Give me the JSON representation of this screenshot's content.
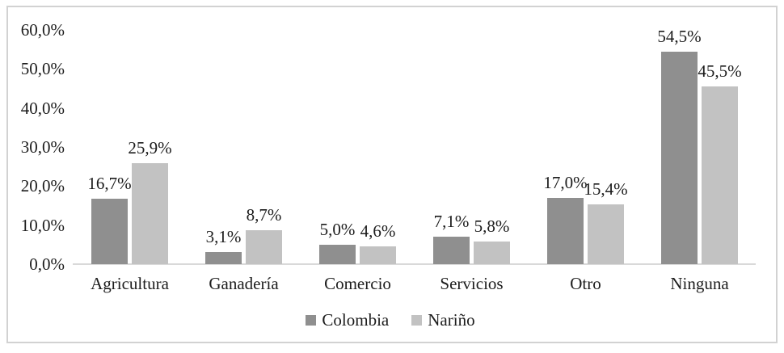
{
  "chart_data": {
    "type": "bar",
    "title": "",
    "xlabel": "",
    "ylabel": "",
    "categories": [
      "Agricultura",
      "Ganadería",
      "Comercio",
      "Servicios",
      "Otro",
      "Ninguna"
    ],
    "series": [
      {
        "name": "Colombia",
        "color": "#8f8f8f",
        "values": [
          16.7,
          3.1,
          5.0,
          7.1,
          17.0,
          54.5
        ],
        "value_labels": [
          "16,7%",
          "3,1%",
          "5,0%",
          "7,1%",
          "17,0%",
          "54,5%"
        ]
      },
      {
        "name": "Nariño",
        "color": "#c2c2c2",
        "values": [
          25.9,
          8.7,
          4.6,
          5.8,
          15.4,
          45.5
        ],
        "value_labels": [
          "25,9%",
          "8,7%",
          "4,6%",
          "5,8%",
          "15,4%",
          "45,5%"
        ]
      }
    ],
    "y_ticks": [
      {
        "value": 0,
        "label": "0,0%"
      },
      {
        "value": 10,
        "label": "10,0%"
      },
      {
        "value": 20,
        "label": "20,0%"
      },
      {
        "value": 30,
        "label": "30,0%"
      },
      {
        "value": 40,
        "label": "40,0%"
      },
      {
        "value": 50,
        "label": "50,0%"
      },
      {
        "value": 60,
        "label": "60,0%"
      }
    ],
    "ylim": [
      0,
      60
    ],
    "grid": false,
    "legend_position": "bottom",
    "colors": {
      "axis_line": "#d9d9d9",
      "frame_border": "#d2d2d2",
      "text": "#1c1c1c",
      "background": "#ffffff"
    }
  }
}
